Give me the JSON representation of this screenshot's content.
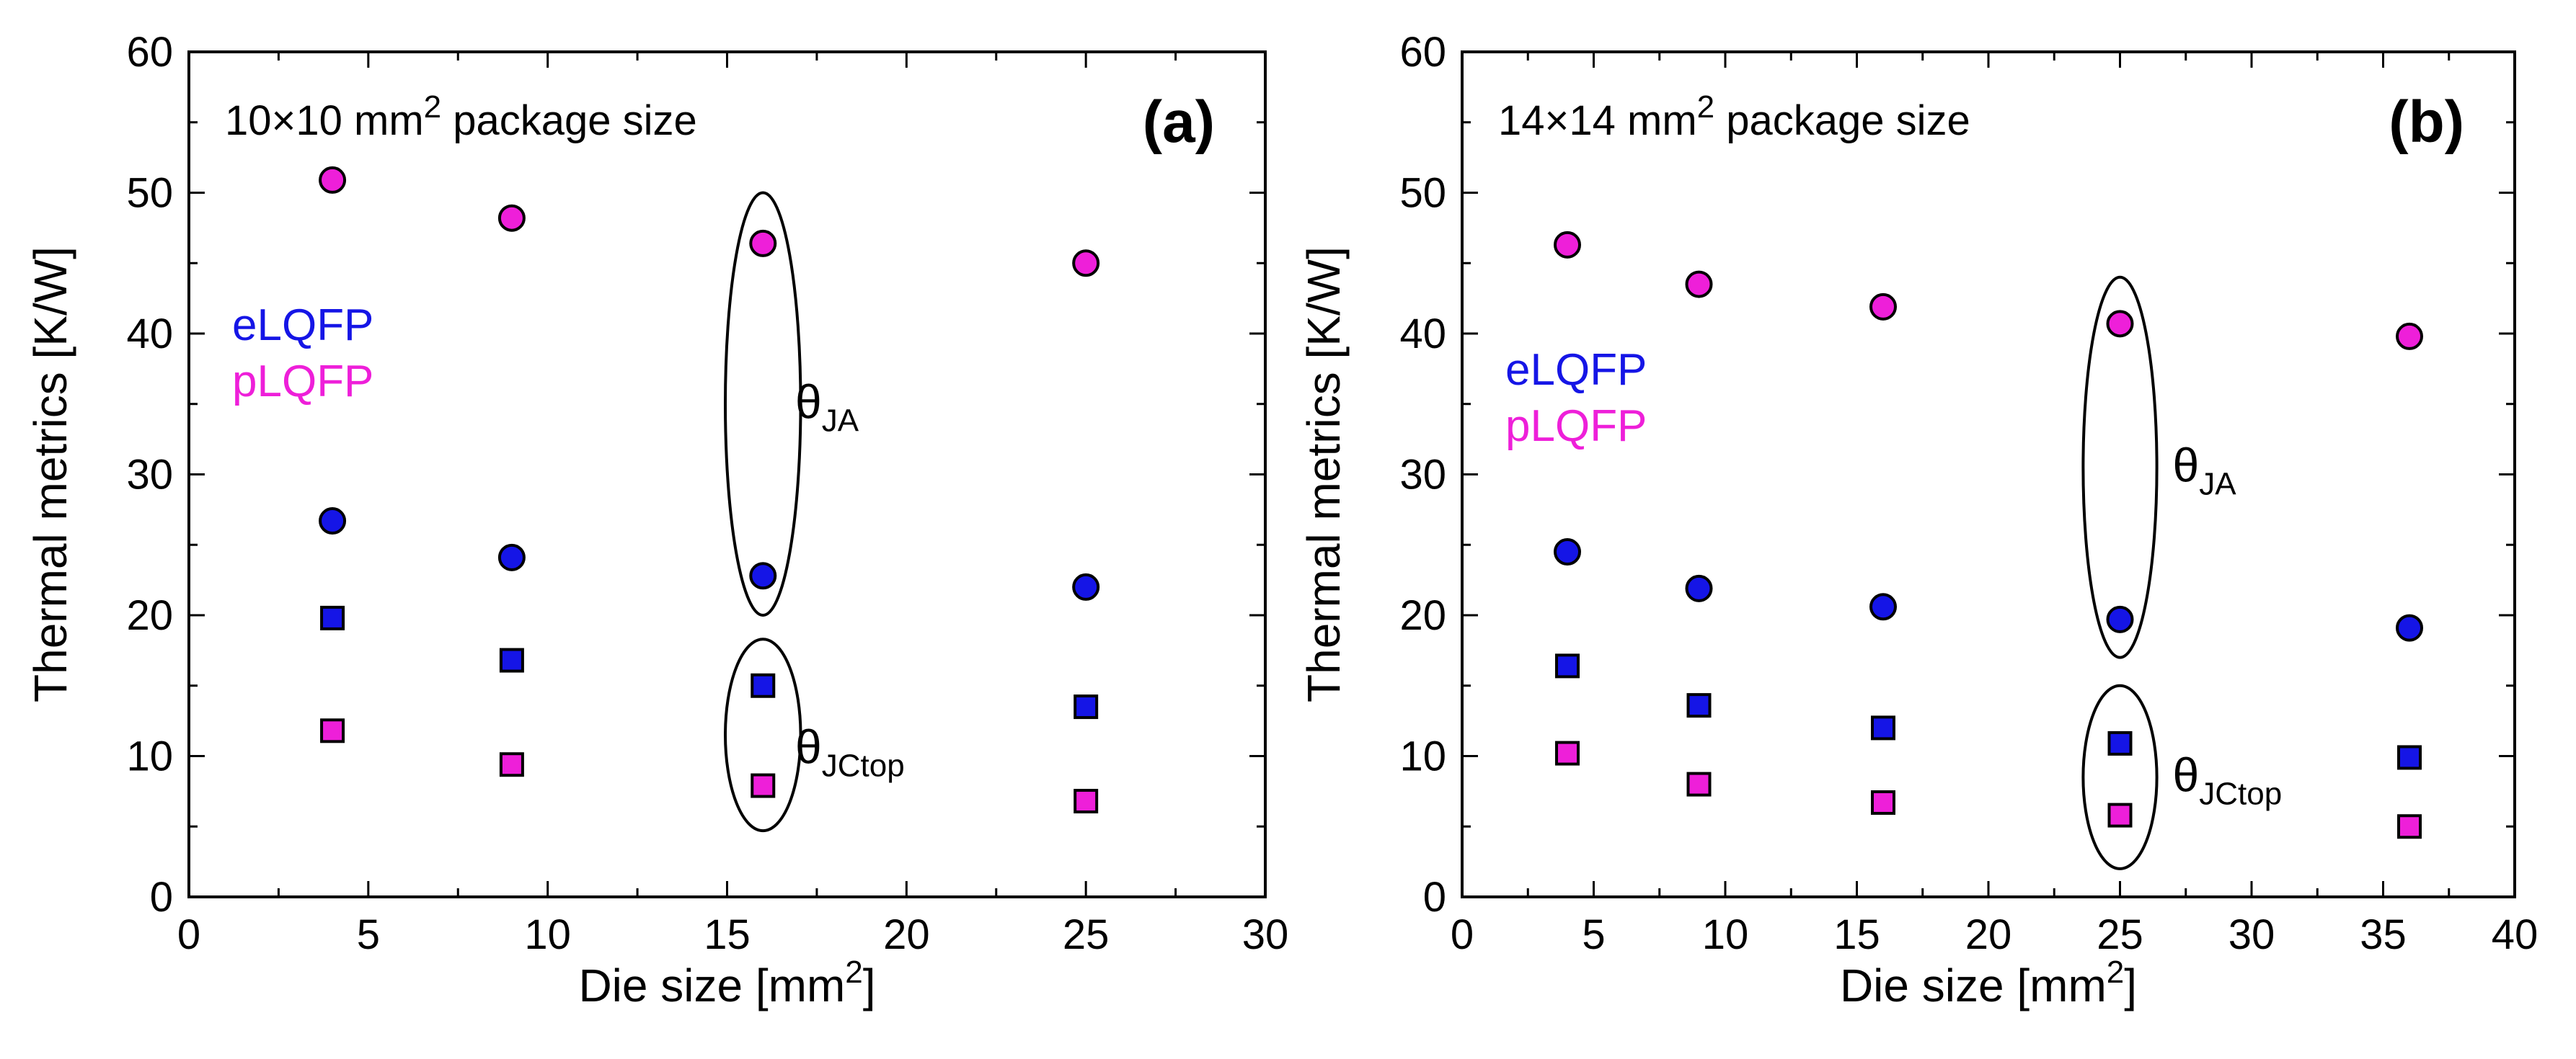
{
  "chart_data": [
    {
      "type": "scatter",
      "panel_label": "(a)",
      "package_text": {
        "prefix": "10×10 mm",
        "sup": "2",
        "suffix": " package size"
      },
      "xlabel": {
        "prefix": "Die size [mm",
        "sup": "2",
        "suffix": "]"
      },
      "ylabel": "Thermal metrics [K/W]",
      "xlim": [
        0,
        30
      ],
      "ylim": [
        0,
        60
      ],
      "xticks": [
        "0",
        "5",
        "10",
        "15",
        "20",
        "25",
        "30"
      ],
      "yticks": [
        "0",
        "10",
        "20",
        "30",
        "40",
        "50",
        "60"
      ],
      "legend_text": [
        {
          "label": "eLQFP",
          "color": "#1515e6"
        },
        {
          "label": "pLQFP",
          "color": "#ee1fd9"
        }
      ],
      "series": [
        {
          "name": "eLQFP θJA",
          "marker": "circle",
          "color": "#1515e6",
          "x": [
            4,
            9,
            16,
            25
          ],
          "y": [
            26.7,
            24.1,
            22.8,
            22.0
          ]
        },
        {
          "name": "pLQFP θJA",
          "marker": "circle",
          "color": "#ee1fd9",
          "x": [
            4,
            9,
            16,
            25
          ],
          "y": [
            50.9,
            48.2,
            46.4,
            45.0
          ]
        },
        {
          "name": "eLQFP θJCtop",
          "marker": "square",
          "color": "#1515e6",
          "x": [
            4,
            9,
            16,
            25
          ],
          "y": [
            19.8,
            16.8,
            15.0,
            13.5
          ]
        },
        {
          "name": "pLQFP θJCtop",
          "marker": "square",
          "color": "#ee1fd9",
          "x": [
            4,
            9,
            16,
            25
          ],
          "y": [
            11.8,
            9.4,
            7.9,
            6.8
          ]
        }
      ],
      "annotations": [
        {
          "name": "theta-ja",
          "base": "θ",
          "sub": "JA",
          "ellipse_center": [
            16,
            35
          ],
          "ellipse_radii": [
            1.05,
            15.0
          ],
          "text_at": [
            16.9,
            34
          ]
        },
        {
          "name": "theta-jctop",
          "base": "θ",
          "sub": "JCtop",
          "ellipse_center": [
            16,
            11.5
          ],
          "ellipse_radii": [
            1.05,
            6.8
          ],
          "text_at": [
            16.9,
            9.5
          ]
        }
      ]
    },
    {
      "type": "scatter",
      "panel_label": "(b)",
      "package_text": {
        "prefix": "14×14 mm",
        "sup": "2",
        "suffix": " package size"
      },
      "xlabel": {
        "prefix": "Die size [mm",
        "sup": "2",
        "suffix": "]"
      },
      "ylabel": "Thermal metrics [K/W]",
      "xlim": [
        0,
        40
      ],
      "ylim": [
        0,
        60
      ],
      "xticks": [
        "0",
        "5",
        "10",
        "15",
        "20",
        "25",
        "30",
        "35",
        "40"
      ],
      "yticks": [
        "0",
        "10",
        "20",
        "30",
        "40",
        "50",
        "60"
      ],
      "legend_text": [
        {
          "label": "eLQFP",
          "color": "#1515e6"
        },
        {
          "label": "pLQFP",
          "color": "#ee1fd9"
        }
      ],
      "series": [
        {
          "name": "eLQFP θJA",
          "marker": "circle",
          "color": "#1515e6",
          "x": [
            4,
            9,
            16,
            25,
            36
          ],
          "y": [
            24.5,
            21.9,
            20.6,
            19.7,
            19.1
          ]
        },
        {
          "name": "pLQFP θJA",
          "marker": "circle",
          "color": "#ee1fd9",
          "x": [
            4,
            9,
            16,
            25,
            36
          ],
          "y": [
            46.3,
            43.5,
            41.9,
            40.7,
            39.8
          ]
        },
        {
          "name": "eLQFP θJCtop",
          "marker": "square",
          "color": "#1515e6",
          "x": [
            4,
            9,
            16,
            25,
            36
          ],
          "y": [
            16.4,
            13.6,
            12.0,
            10.9,
            9.9
          ]
        },
        {
          "name": "pLQFP θJCtop",
          "marker": "square",
          "color": "#ee1fd9",
          "x": [
            4,
            9,
            16,
            25,
            36
          ],
          "y": [
            10.2,
            8.0,
            6.7,
            5.8,
            5.0
          ]
        }
      ],
      "annotations": [
        {
          "name": "theta-ja",
          "base": "θ",
          "sub": "JA",
          "ellipse_center": [
            25,
            30.5
          ],
          "ellipse_radii": [
            1.4,
            13.5
          ],
          "text_at": [
            27.0,
            29.5
          ]
        },
        {
          "name": "theta-jctop",
          "base": "θ",
          "sub": "JCtop",
          "ellipse_center": [
            25,
            8.5
          ],
          "ellipse_radii": [
            1.4,
            6.5
          ],
          "text_at": [
            27.0,
            7.5
          ]
        }
      ]
    }
  ]
}
